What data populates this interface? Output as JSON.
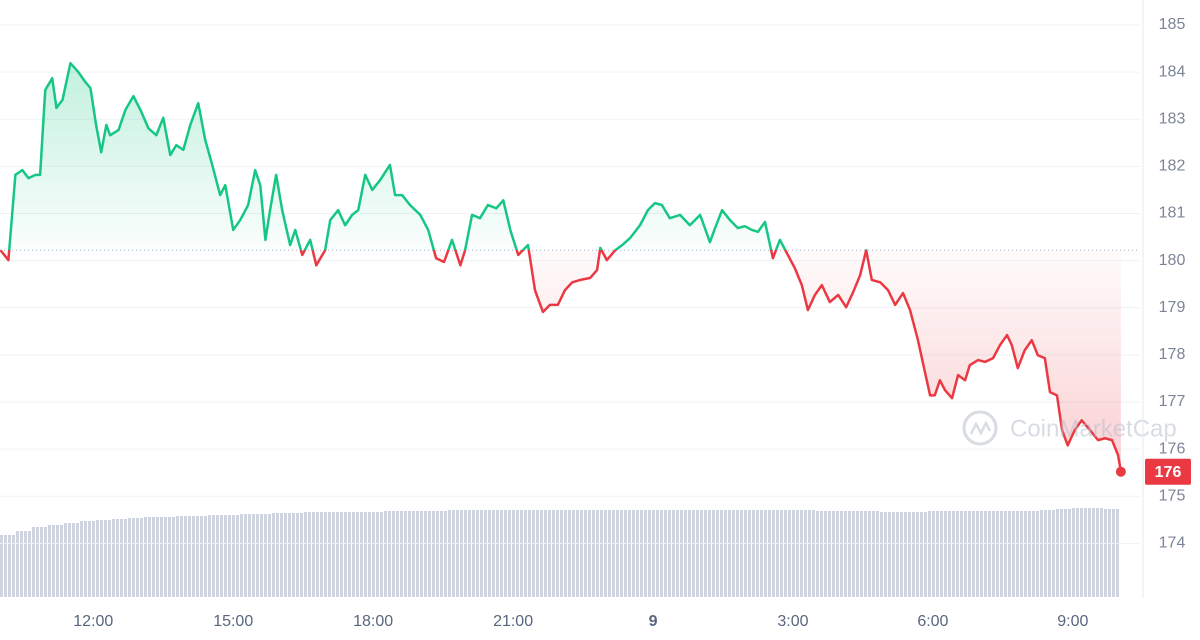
{
  "chart_data": {
    "type": "line",
    "watermark": "CoinMarketCap",
    "last_price_label": "176",
    "baseline": 180.22,
    "grid": true,
    "xlim": [
      10.0,
      34.44
    ],
    "ylim": [
      172.84,
      185.53
    ],
    "xticks": [
      {
        "value": 12,
        "label": "12:00"
      },
      {
        "value": 15,
        "label": "15:00"
      },
      {
        "value": 18,
        "label": "18:00"
      },
      {
        "value": 21,
        "label": "21:00"
      },
      {
        "value": 24,
        "label": "9"
      },
      {
        "value": 27,
        "label": "3:00"
      },
      {
        "value": 30,
        "label": "6:00"
      },
      {
        "value": 33,
        "label": "9:00"
      }
    ],
    "yticks": [
      174,
      175,
      176,
      177,
      178,
      179,
      180,
      181,
      182,
      183,
      184,
      185
    ],
    "x": [
      10.01,
      10.18,
      10.33,
      10.48,
      10.61,
      10.76,
      10.86,
      10.97,
      11.12,
      11.21,
      11.34,
      11.51,
      11.68,
      11.83,
      11.94,
      12.06,
      12.17,
      12.28,
      12.36,
      12.54,
      12.69,
      12.86,
      13.01,
      13.18,
      13.35,
      13.5,
      13.65,
      13.78,
      13.93,
      14.08,
      14.25,
      14.4,
      14.55,
      14.72,
      14.83,
      15.0,
      15.15,
      15.32,
      15.47,
      15.58,
      15.69,
      15.79,
      15.92,
      16.05,
      16.22,
      16.33,
      16.48,
      16.65,
      16.78,
      16.97,
      17.08,
      17.25,
      17.4,
      17.55,
      17.68,
      17.83,
      17.98,
      18.15,
      18.36,
      18.47,
      18.62,
      18.79,
      19.01,
      19.18,
      19.35,
      19.52,
      19.69,
      19.87,
      19.97,
      20.12,
      20.29,
      20.46,
      20.64,
      20.79,
      20.94,
      21.11,
      21.32,
      21.47,
      21.64,
      21.79,
      21.96,
      22.11,
      22.27,
      22.44,
      22.65,
      22.8,
      22.87,
      23.01,
      23.19,
      23.34,
      23.51,
      23.72,
      23.89,
      24.04,
      24.19,
      24.36,
      24.58,
      24.79,
      25.01,
      25.22,
      25.33,
      25.48,
      25.65,
      25.82,
      25.97,
      26.12,
      26.25,
      26.4,
      26.57,
      26.72,
      26.89,
      27.04,
      27.19,
      27.32,
      27.47,
      27.62,
      27.79,
      27.97,
      28.14,
      28.29,
      28.44,
      28.57,
      28.69,
      28.87,
      29.04,
      29.19,
      29.36,
      29.51,
      29.68,
      29.83,
      29.94,
      30.04,
      30.15,
      30.26,
      30.41,
      30.54,
      30.69,
      30.79,
      30.97,
      31.12,
      31.29,
      31.44,
      31.59,
      31.69,
      31.82,
      31.97,
      32.12,
      32.25,
      32.4,
      32.51,
      32.66,
      32.77,
      32.89,
      33.04,
      33.19,
      33.37,
      33.54,
      33.69,
      33.84,
      33.97,
      34.03
    ],
    "series": [
      {
        "color_up": "#16c784",
        "color_down": "#ea3943",
        "values": [
          180.22,
          180.01,
          181.82,
          181.92,
          181.75,
          181.82,
          181.82,
          183.62,
          183.87,
          183.24,
          183.41,
          184.19,
          184.0,
          183.79,
          183.66,
          182.88,
          182.3,
          182.88,
          182.66,
          182.77,
          183.2,
          183.49,
          183.2,
          182.81,
          182.66,
          183.03,
          182.24,
          182.45,
          182.35,
          182.88,
          183.34,
          182.56,
          182.03,
          181.39,
          181.6,
          180.65,
          180.86,
          181.18,
          181.92,
          181.6,
          180.44,
          181.07,
          181.82,
          181.07,
          180.33,
          180.65,
          180.12,
          180.44,
          179.9,
          180.22,
          180.86,
          181.07,
          180.75,
          180.97,
          181.07,
          181.82,
          181.5,
          181.71,
          182.03,
          181.39,
          181.39,
          181.18,
          180.97,
          180.65,
          180.05,
          179.97,
          180.44,
          179.9,
          180.22,
          180.97,
          180.9,
          181.18,
          181.11,
          181.28,
          180.65,
          180.12,
          180.33,
          179.37,
          178.91,
          179.06,
          179.06,
          179.37,
          179.54,
          179.59,
          179.63,
          179.8,
          180.27,
          180.01,
          180.22,
          180.33,
          180.48,
          180.75,
          181.07,
          181.22,
          181.18,
          180.9,
          180.97,
          180.75,
          180.97,
          180.39,
          180.69,
          181.07,
          180.86,
          180.69,
          180.73,
          180.65,
          180.61,
          180.82,
          180.05,
          180.44,
          180.12,
          179.84,
          179.48,
          178.95,
          179.27,
          179.48,
          179.12,
          179.27,
          179.01,
          179.33,
          179.69,
          180.22,
          179.59,
          179.54,
          179.37,
          179.06,
          179.31,
          178.95,
          178.31,
          177.63,
          177.14,
          177.14,
          177.46,
          177.25,
          177.08,
          177.57,
          177.46,
          177.78,
          177.89,
          177.85,
          177.93,
          178.21,
          178.42,
          178.21,
          177.72,
          178.1,
          178.31,
          177.99,
          177.93,
          177.21,
          177.14,
          176.4,
          176.08,
          176.4,
          176.61,
          176.4,
          176.19,
          176.23,
          176.19,
          175.87,
          175.52
        ]
      }
    ],
    "volume": {
      "color": "#cfd4df",
      "values": [
        62,
        66,
        70,
        72,
        74,
        76,
        77,
        78,
        79,
        80,
        80,
        81,
        81,
        82,
        82,
        83,
        83,
        84,
        84,
        85,
        85,
        85,
        85,
        85,
        86,
        86,
        86,
        86,
        87,
        87,
        87,
        87,
        87,
        87,
        87,
        87,
        87,
        87,
        87,
        87,
        87,
        87,
        87,
        87,
        87,
        87,
        87,
        87,
        87,
        87,
        87,
        86,
        86,
        86,
        86,
        85,
        85,
        85,
        86,
        86,
        86,
        86,
        86,
        86,
        86,
        87,
        88,
        89,
        89,
        88
      ]
    }
  }
}
